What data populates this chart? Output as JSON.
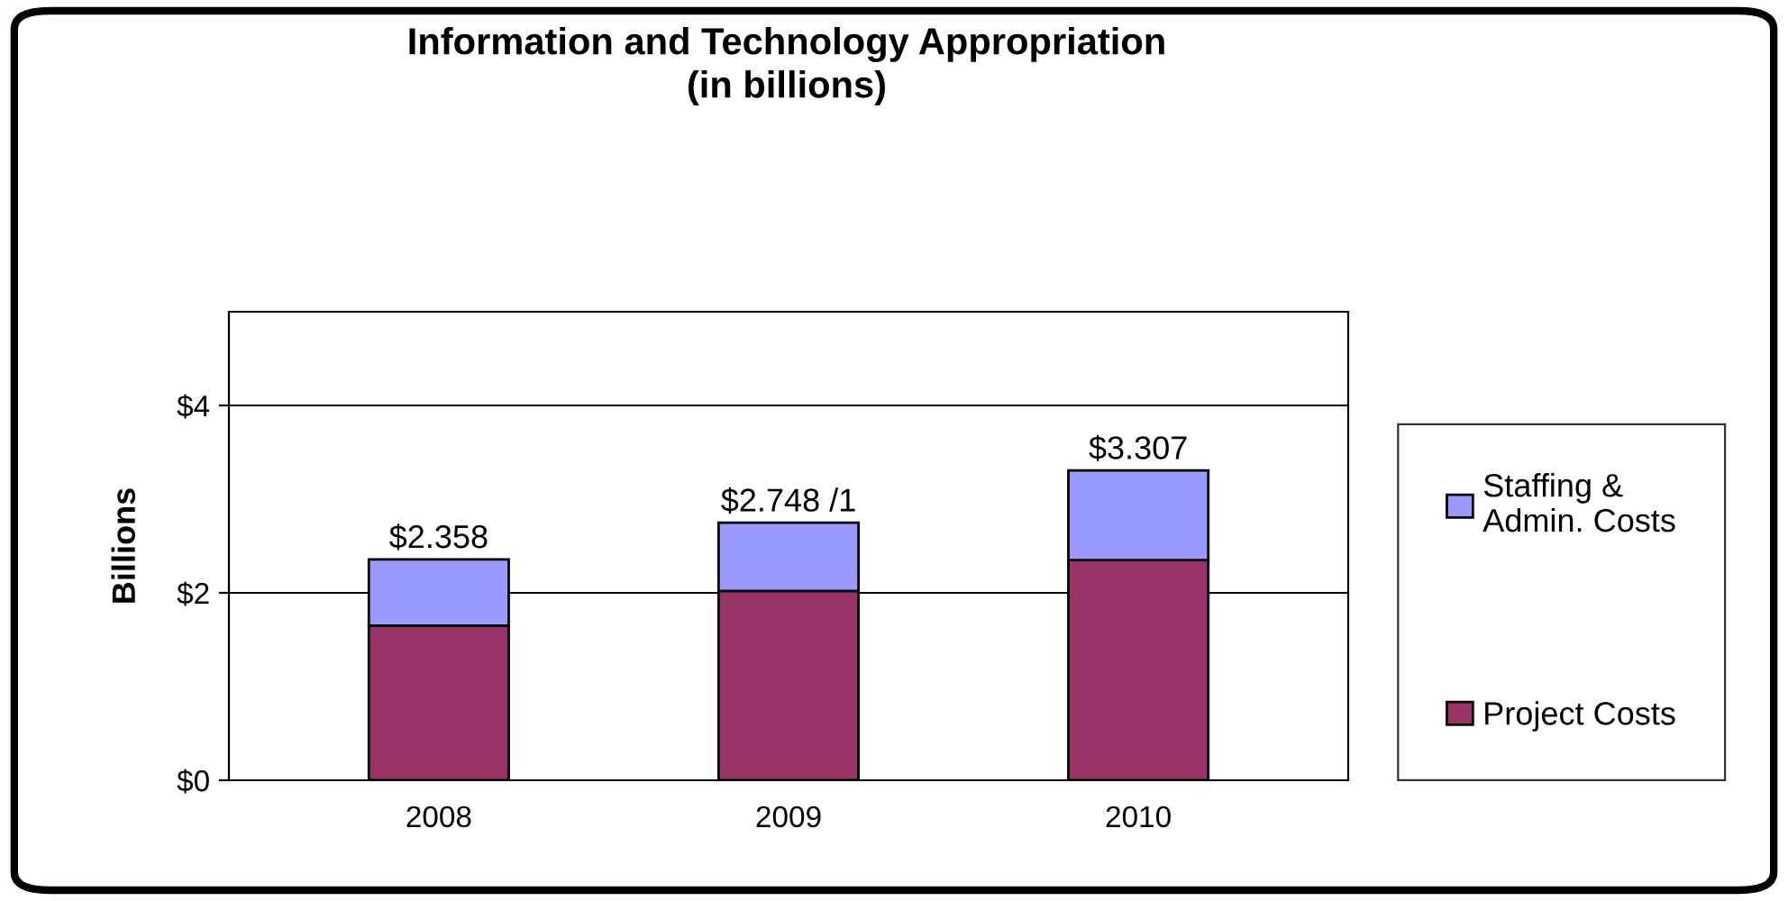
{
  "chart_data": {
    "type": "bar",
    "title": "Information and Technology Appropriation\n(in billions)",
    "ylabel": "Billions",
    "categories": [
      "2008",
      "2009",
      "2010"
    ],
    "stacked": true,
    "series": [
      {
        "name": "Project Costs",
        "color": "#993366",
        "values": [
          1.65,
          2.02,
          2.35
        ]
      },
      {
        "name": "Staffing &\nAdmin. Costs",
        "color": "#9999ff",
        "values": [
          0.708,
          0.728,
          0.957
        ]
      }
    ],
    "totals": [
      "$2.358",
      "$2.748 /1",
      "$3.307"
    ],
    "ylim": [
      0,
      5
    ],
    "yticks": [
      {
        "value": 0,
        "label": "$0"
      },
      {
        "value": 2,
        "label": "$2"
      },
      {
        "value": 4,
        "label": "$4"
      }
    ],
    "grid": "y",
    "legend": "right"
  }
}
